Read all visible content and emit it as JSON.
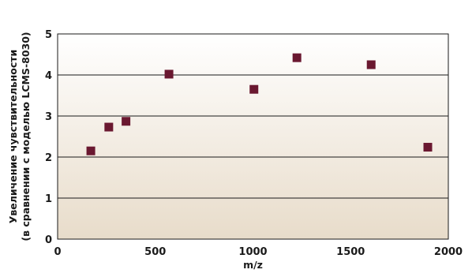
{
  "chart_data": {
    "type": "scatter",
    "title": "",
    "xlabel": "m/z",
    "ylabel_lines": [
      "Увеличение чувствительности",
      "(в сравнении с моделью LCMS-8030)"
    ],
    "xlim": [
      0,
      2000
    ],
    "ylim": [
      0,
      5
    ],
    "x_ticks": [
      0,
      500,
      1000,
      1500,
      2000
    ],
    "y_ticks": [
      0,
      1,
      2,
      3,
      4,
      5
    ],
    "grid": "horizontal",
    "legend": "none",
    "colors": {
      "marker": "#6a1830",
      "plot_bg_top": "#ffffff",
      "plot_bg_bottom": "#e8dcca",
      "grid": "#1a1a1a"
    },
    "series": [
      {
        "points": [
          {
            "x": 170,
            "y": 2.15
          },
          {
            "x": 262,
            "y": 2.73
          },
          {
            "x": 350,
            "y": 2.87
          },
          {
            "x": 570,
            "y": 4.02
          },
          {
            "x": 1005,
            "y": 3.65
          },
          {
            "x": 1225,
            "y": 4.42
          },
          {
            "x": 1605,
            "y": 4.25
          },
          {
            "x": 1895,
            "y": 2.24
          }
        ]
      }
    ]
  }
}
